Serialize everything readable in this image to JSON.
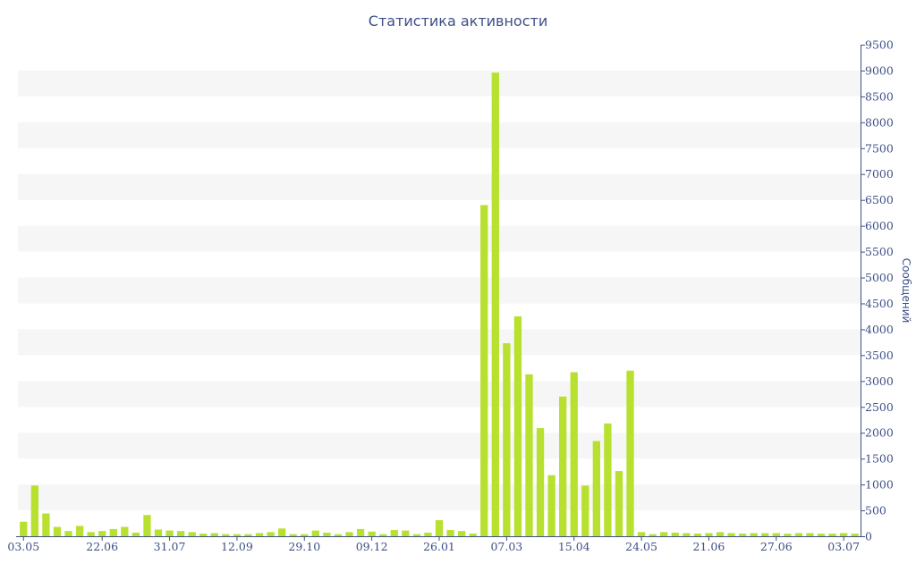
{
  "chart_data": {
    "type": "bar",
    "title": "Статистика активности",
    "xlabel": "",
    "ylabel": "Сообщений",
    "ylim": [
      0,
      9500
    ],
    "y_ticks": [
      0,
      500,
      1000,
      1500,
      2000,
      2500,
      3000,
      3500,
      4000,
      4500,
      5000,
      5500,
      6000,
      6500,
      7000,
      7500,
      8000,
      8500,
      9000,
      9500
    ],
    "x_tick_labels": [
      {
        "label": "03.05",
        "index": 0
      },
      {
        "label": "22.06",
        "index": 7
      },
      {
        "label": "31.07",
        "index": 13
      },
      {
        "label": "12.09",
        "index": 19
      },
      {
        "label": "29.10",
        "index": 25
      },
      {
        "label": "09.12",
        "index": 31
      },
      {
        "label": "26.01",
        "index": 37
      },
      {
        "label": "07.03",
        "index": 43
      },
      {
        "label": "15.04",
        "index": 49
      },
      {
        "label": "24.05",
        "index": 55
      },
      {
        "label": "21.06",
        "index": 61
      },
      {
        "label": "27.06",
        "index": 67
      },
      {
        "label": "03.07",
        "index": 73
      }
    ],
    "values": [
      280,
      980,
      440,
      180,
      100,
      200,
      80,
      100,
      140,
      180,
      70,
      410,
      130,
      110,
      100,
      80,
      50,
      60,
      40,
      40,
      40,
      60,
      80,
      150,
      40,
      40,
      110,
      70,
      40,
      80,
      140,
      90,
      40,
      120,
      110,
      40,
      70,
      310,
      120,
      100,
      50,
      6400,
      8960,
      3730,
      4250,
      3130,
      2090,
      1180,
      2700,
      3170,
      980,
      1840,
      2180,
      1260,
      3200,
      80,
      40,
      80,
      70,
      60,
      50,
      60,
      80,
      60,
      50,
      60,
      60,
      60,
      50,
      60,
      60,
      50,
      50,
      60,
      50
    ],
    "colors": {
      "bar": "#b8e02e",
      "band": "#f6f6f6",
      "axis": "#3d4f88",
      "text": "#3d4f88"
    },
    "grid": "alternating-bands",
    "legend": "none",
    "y_axis_side": "right"
  }
}
